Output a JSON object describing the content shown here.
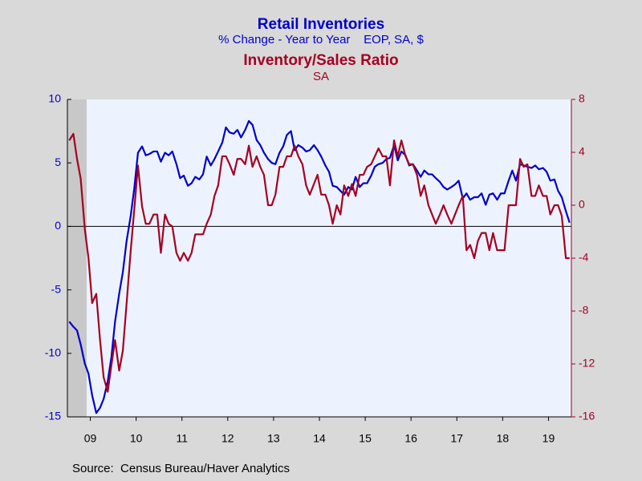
{
  "chart_data": {
    "type": "line",
    "title": "Retail Inventories",
    "subtitle": "% Change - Year to Year    EOP, SA, $",
    "title2": "Inventory/Sales Ratio",
    "subtitle2": "SA",
    "source": "Source:  Census Bureau/Haver Analytics",
    "x": [
      2009.04,
      2009.13,
      2009.21,
      2009.29,
      2009.38,
      2009.46,
      2009.54,
      2009.63,
      2009.71,
      2009.79,
      2009.88,
      2009.96,
      2010.04,
      2010.13,
      2010.21,
      2010.29,
      2010.38,
      2010.46,
      2010.54,
      2010.63,
      2010.71,
      2010.79,
      2010.88,
      2010.96,
      2011.04,
      2011.13,
      2011.21,
      2011.29,
      2011.38,
      2011.46,
      2011.54,
      2011.63,
      2011.71,
      2011.79,
      2011.88,
      2011.96,
      2012.04,
      2012.13,
      2012.21,
      2012.29,
      2012.38,
      2012.46,
      2012.54,
      2012.63,
      2012.71,
      2012.79,
      2012.88,
      2012.96,
      2013.04,
      2013.13,
      2013.21,
      2013.29,
      2013.38,
      2013.46,
      2013.54,
      2013.63,
      2013.71,
      2013.79,
      2013.88,
      2013.96,
      2014.04,
      2014.13,
      2014.21,
      2014.29,
      2014.38,
      2014.46,
      2014.54,
      2014.63,
      2014.71,
      2014.79,
      2014.88,
      2014.96,
      2015.04,
      2015.13,
      2015.21,
      2015.29,
      2015.38,
      2015.46,
      2015.54,
      2015.63,
      2015.71,
      2015.79,
      2015.88,
      2015.96,
      2016.04,
      2016.13,
      2016.21,
      2016.29,
      2016.38,
      2016.46,
      2016.54,
      2016.63,
      2016.71,
      2016.79,
      2016.88,
      2016.96,
      2017.04,
      2017.13,
      2017.21,
      2017.29,
      2017.38,
      2017.46,
      2017.54,
      2017.63,
      2017.71,
      2017.79,
      2017.88,
      2017.96,
      2018.04,
      2018.13,
      2018.21,
      2018.29,
      2018.38,
      2018.46,
      2018.54,
      2018.63,
      2018.71,
      2018.79,
      2018.88,
      2018.96,
      2019.04,
      2019.13,
      2019.21,
      2019.29,
      2019.38,
      2019.46,
      2019.54,
      2019.63,
      2019.71,
      2019.79,
      2019.88,
      2019.96
    ],
    "series": [
      {
        "color": "#0000cc",
        "axis": "y",
        "values": [
          -7.5,
          -7.9,
          -8.2,
          -9.3,
          -10.8,
          -11.6,
          -13.3,
          -14.7,
          -14.3,
          -13.6,
          -12.2,
          -10.3,
          -7.5,
          -5.3,
          -3.6,
          -1.2,
          0.8,
          3.0,
          5.8,
          6.3,
          5.6,
          5.7,
          5.9,
          5.9,
          5.1,
          5.8,
          5.6,
          5.9,
          4.9,
          3.8,
          4.0,
          3.2,
          3.4,
          3.9,
          3.7,
          4.1,
          5.5,
          4.8,
          5.3,
          5.9,
          6.6,
          7.8,
          7.4,
          7.3,
          7.6,
          7.0,
          7.6,
          8.3,
          8.0,
          6.8,
          6.4,
          5.8,
          5.3,
          5.0,
          4.9,
          5.8,
          6.3,
          7.2,
          7.5,
          6.0,
          6.4,
          6.2,
          5.9,
          6.0,
          6.4,
          6.0,
          5.5,
          4.8,
          4.3,
          3.2,
          3.1,
          2.8,
          2.5,
          3.1,
          2.9,
          3.9,
          3.1,
          3.4,
          3.4,
          4.0,
          4.7,
          4.9,
          5.0,
          5.3,
          5.4,
          6.4,
          5.2,
          5.9,
          5.6,
          4.8,
          4.9,
          4.4,
          3.9,
          4.4,
          4.1,
          4.1,
          3.8,
          3.5,
          3.1,
          2.9,
          3.1,
          3.3,
          3.6,
          2.2,
          2.6,
          2.1,
          2.3,
          2.3,
          2.6,
          1.7,
          2.5,
          2.6,
          2.1,
          2.6,
          2.6,
          3.6,
          4.4,
          3.6,
          4.9,
          4.8,
          4.7,
          4.6,
          4.8,
          4.5,
          4.6,
          4.3,
          3.6,
          3.7,
          2.8,
          2.3,
          1.2,
          0.3
        ]
      },
      {
        "color": "#a50021",
        "axis": "y2",
        "values": [
          4.9,
          5.4,
          3.5,
          2.0,
          -1.8,
          -4.0,
          -7.4,
          -6.7,
          -10.1,
          -13.0,
          -14.1,
          -12.1,
          -10.2,
          -12.5,
          -11.0,
          -7.5,
          -3.5,
          -0.3,
          3.0,
          -0.1,
          -1.4,
          -1.4,
          -0.7,
          -0.7,
          -3.6,
          -0.7,
          -1.4,
          -1.6,
          -3.6,
          -4.2,
          -3.6,
          -4.2,
          -3.6,
          -2.2,
          -2.2,
          -2.2,
          -1.4,
          -0.7,
          0.7,
          1.5,
          3.7,
          3.7,
          3.1,
          2.3,
          3.5,
          3.5,
          3.1,
          4.5,
          2.9,
          3.7,
          2.9,
          2.3,
          0,
          0,
          0.8,
          2.9,
          2.9,
          3.7,
          3.7,
          4.5,
          3.7,
          3.1,
          1.5,
          0.8,
          1.6,
          2.3,
          0.8,
          0.8,
          0,
          -1.4,
          0,
          -0.7,
          1.5,
          0.7,
          1.6,
          0.7,
          2.3,
          2.3,
          2.9,
          3.1,
          3.7,
          4.3,
          3.7,
          3.7,
          1.5,
          4.9,
          3.7,
          4.9,
          3.7,
          3.1,
          3.1,
          2.3,
          0.7,
          1.5,
          0,
          -0.7,
          -1.4,
          -0.7,
          0,
          -0.7,
          -1.4,
          -0.7,
          0,
          0.7,
          -3.4,
          -3.0,
          -4.0,
          -2.7,
          -2.1,
          -2.1,
          -3.4,
          -2.1,
          -3.4,
          -3.4,
          -3.4,
          0,
          0,
          0,
          3.5,
          2.9,
          3.1,
          0.7,
          0.7,
          1.5,
          0.7,
          0.7,
          -0.7,
          0,
          0,
          -0.8,
          -4.0,
          -4.0
        ]
      }
    ],
    "xlim": [
      2009,
      2020
    ],
    "xticks": [
      {
        "value": 2009.5,
        "label": "09"
      },
      {
        "value": 2010.5,
        "label": "10"
      },
      {
        "value": 2011.5,
        "label": "11"
      },
      {
        "value": 2012.5,
        "label": "12"
      },
      {
        "value": 2013.5,
        "label": "13"
      },
      {
        "value": 2014.5,
        "label": "14"
      },
      {
        "value": 2015.5,
        "label": "15"
      },
      {
        "value": 2016.5,
        "label": "16"
      },
      {
        "value": 2017.5,
        "label": "17"
      },
      {
        "value": 2018.5,
        "label": "18"
      },
      {
        "value": 2019.5,
        "label": "19"
      }
    ],
    "ylim": [
      -15,
      10
    ],
    "yticks": [
      -15,
      -10,
      -5,
      0,
      5,
      10
    ],
    "y2lim": [
      -16,
      8
    ],
    "y2ticks": [
      -16,
      -12,
      -8,
      -4,
      0,
      4,
      8
    ],
    "shaded_periods": [
      [
        2009,
        2009.42
      ]
    ],
    "zero_line": true
  }
}
